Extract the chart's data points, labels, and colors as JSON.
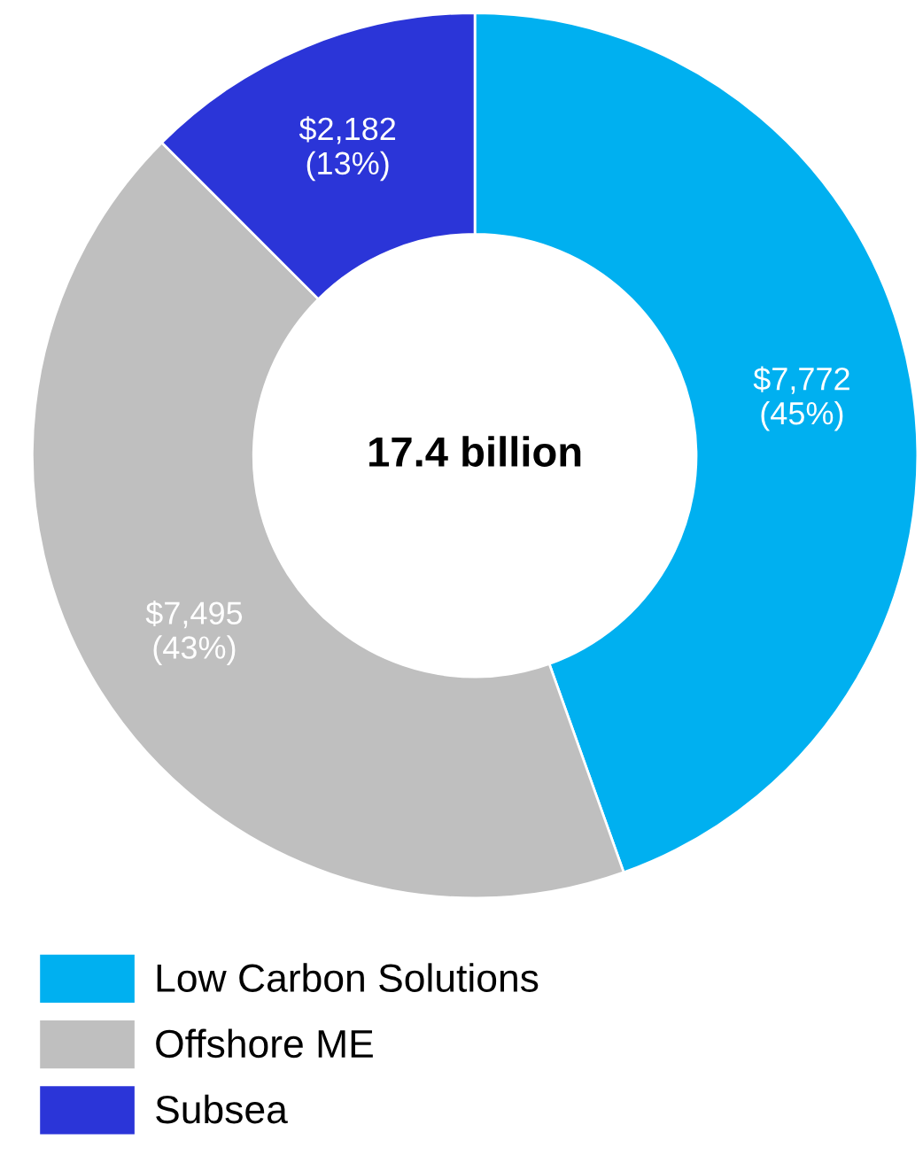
{
  "chart_data": {
    "type": "donut",
    "categories": [
      "Low Carbon Solutions",
      "Offshore ME",
      "Subsea"
    ],
    "values": [
      7772,
      7495,
      2182
    ],
    "colors": [
      "#00b0f0",
      "#bfbfbf",
      "#2b35d8"
    ],
    "value_labels": [
      "$7,772\n(45%)",
      "$7,495\n(43%)",
      "$2,182\n(13%)"
    ],
    "annotations": [
      "17.4 billion"
    ],
    "legend": "bottom"
  }
}
